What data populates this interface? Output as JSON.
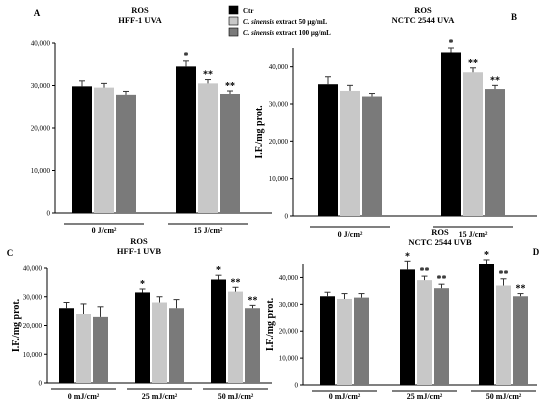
{
  "legend": {
    "items": [
      {
        "species": "",
        "label": "Ctr",
        "color": "#000000"
      },
      {
        "species": "C. sinensis",
        "label": " extract 50 µg/mL",
        "color": "#c8c8c8"
      },
      {
        "species": "C. sinensis",
        "label": " extract 100 µg/mL",
        "color": "#7a7a7a"
      }
    ]
  },
  "chart_data": [
    {
      "type": "bar",
      "panel": "A",
      "title": "ROS",
      "subtitle": "HFF-1 UVA",
      "xlabel": "",
      "ylabel": "",
      "categories": [
        "0 J/cm²",
        "15 J/cm²"
      ],
      "ylim": [
        0,
        40000
      ],
      "yticks": [
        "0",
        "10,000",
        "20,000",
        "30,000",
        "40,000"
      ],
      "series": [
        {
          "name": "Ctr",
          "values": [
            29800,
            34500
          ],
          "errors": [
            1300,
            1300
          ],
          "stars": [
            "",
            "*"
          ]
        },
        {
          "name": "C. sinensis extract 50 µg/mL",
          "values": [
            29500,
            30500
          ],
          "errors": [
            1000,
            900
          ],
          "stars": [
            "",
            "**"
          ]
        },
        {
          "name": "C. sinensis extract 100 µg/mL",
          "values": [
            27800,
            28000
          ],
          "errors": [
            800,
            700
          ],
          "stars": [
            "",
            "**"
          ]
        }
      ]
    },
    {
      "type": "bar",
      "panel": "B",
      "title": "ROS",
      "subtitle": "NCTC 2544 UVA",
      "xlabel": "",
      "ylabel": "I.F./mg prot.",
      "categories": [
        "0 J/cm²",
        "15 J/cm²"
      ],
      "ylim": [
        0,
        45000
      ],
      "yticks": [
        "0",
        "10,000",
        "20,000",
        "30,000",
        "40,000"
      ],
      "series": [
        {
          "name": "Ctr",
          "values": [
            35300,
            43800
          ],
          "errors": [
            2000,
            1200
          ],
          "stars": [
            "",
            "*"
          ]
        },
        {
          "name": "C. sinensis extract 50 µg/mL",
          "values": [
            33500,
            38500
          ],
          "errors": [
            1500,
            1200
          ],
          "stars": [
            "",
            "**"
          ]
        },
        {
          "name": "C. sinensis extract 100 µg/mL",
          "values": [
            32000,
            34000
          ],
          "errors": [
            800,
            1000
          ],
          "stars": [
            "",
            "**"
          ]
        }
      ]
    },
    {
      "type": "bar",
      "panel": "C",
      "title": "ROS",
      "subtitle": "HFF-1 UVB",
      "xlabel": "",
      "ylabel": "I.F./mg prot.",
      "categories": [
        "0 mJ/cm²",
        "25 mJ/cm²",
        "50 mJ/cm²"
      ],
      "ylim": [
        0,
        40000
      ],
      "yticks": [
        "0",
        "10,000",
        "20,000",
        "30,000",
        "40,000"
      ],
      "series": [
        {
          "name": "Ctr",
          "values": [
            26000,
            31500,
            36000
          ],
          "errors": [
            2000,
            1200,
            1500
          ],
          "stars": [
            "",
            "*",
            "*"
          ]
        },
        {
          "name": "C. sinensis extract 50 µg/mL",
          "values": [
            24000,
            28000,
            31800
          ],
          "errors": [
            3500,
            2000,
            1500
          ],
          "stars": [
            "",
            "",
            "**"
          ]
        },
        {
          "name": "C. sinensis extract 100 µg/mL",
          "values": [
            23000,
            26000,
            26000
          ],
          "errors": [
            3500,
            3000,
            1000
          ],
          "stars": [
            "",
            "",
            "**"
          ]
        }
      ]
    },
    {
      "type": "bar",
      "panel": "D",
      "title": "ROS",
      "subtitle": "NCTC 2544 UVB",
      "xlabel": "",
      "ylabel": "I.F./mg prot.",
      "categories": [
        "0 mJ/cm²",
        "25 mJ/cm²",
        "50 mJ/cm²"
      ],
      "ylim": [
        0,
        45000
      ],
      "yticks": [
        "0",
        "10,000",
        "20,000",
        "30,000",
        "40,000"
      ],
      "series": [
        {
          "name": "Ctr",
          "values": [
            33000,
            43000,
            45000
          ],
          "errors": [
            1500,
            3000,
            1500
          ],
          "stars": [
            "",
            "*",
            "*"
          ]
        },
        {
          "name": "C. sinensis extract 50 µg/mL",
          "values": [
            32000,
            39000,
            37000
          ],
          "errors": [
            2000,
            1500,
            2500
          ],
          "stars": [
            "",
            "**",
            "**"
          ]
        },
        {
          "name": "C. sinensis extract 100 µg/mL",
          "values": [
            32500,
            36000,
            33000
          ],
          "errors": [
            1500,
            1500,
            1000
          ],
          "stars": [
            "",
            "**",
            "**"
          ]
        }
      ]
    }
  ]
}
